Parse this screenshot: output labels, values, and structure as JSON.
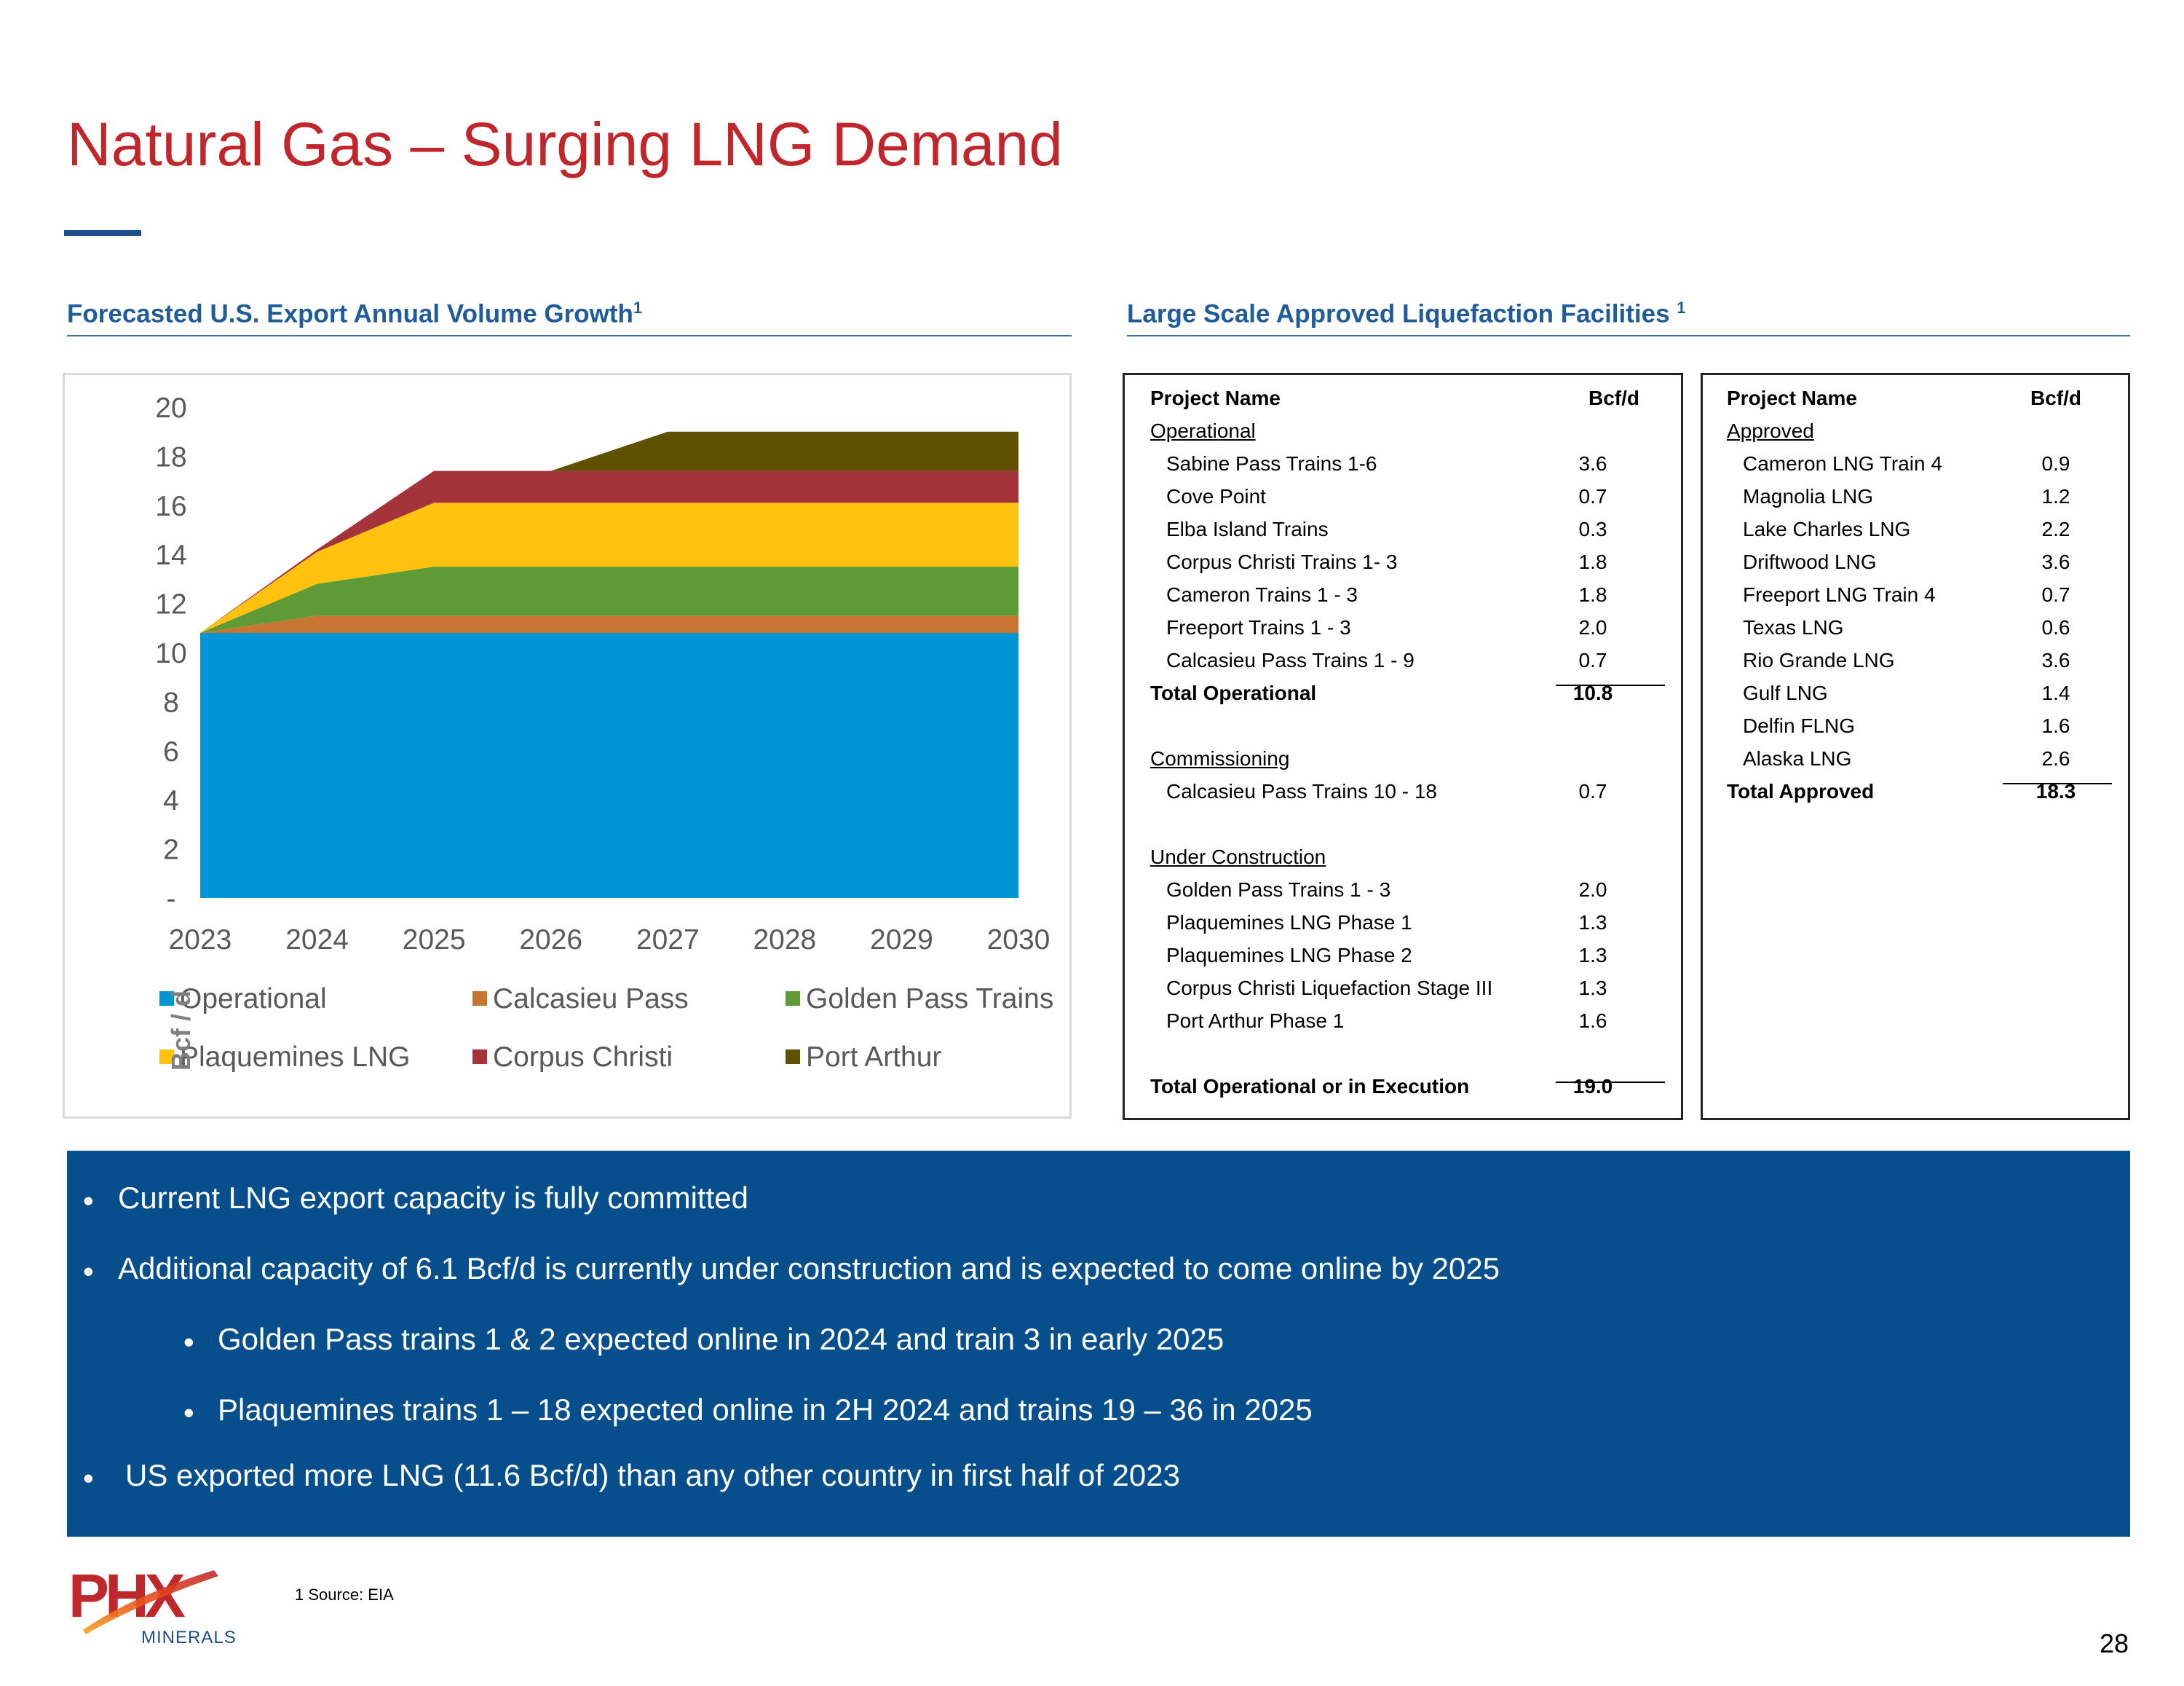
{
  "slide": {
    "title": "Natural Gas – Surging LNG Demand",
    "page_number": "28",
    "footnote": "1 Source: EIA"
  },
  "logo": {
    "mark": "PHX",
    "subtitle": "MINERALS"
  },
  "left_section": {
    "title": "Forecasted U.S. Export Annual Volume Growth",
    "superscript": "1"
  },
  "right_section": {
    "title": "Large Scale Approved Liquefaction Facilities",
    "superscript": "1"
  },
  "chart_data": {
    "type": "area",
    "stacked": true,
    "title": "Forecasted U.S. Export Annual Volume Growth",
    "x": [
      "2023",
      "2024",
      "2025",
      "2026",
      "2027",
      "2028",
      "2029",
      "2030"
    ],
    "ylabel": "Bcf / d",
    "ylim": [
      0,
      20
    ],
    "yticks": [
      "-",
      "2",
      "4",
      "6",
      "8",
      "10",
      "12",
      "14",
      "16",
      "18",
      "20"
    ],
    "grid": false,
    "legend_position": "bottom",
    "series": [
      {
        "name": "Operational",
        "color": "#0096d6",
        "values": [
          10.8,
          10.8,
          10.8,
          10.8,
          10.8,
          10.8,
          10.8,
          10.8
        ]
      },
      {
        "name": "Calcasieu Pass",
        "color": "#c87533",
        "values": [
          0,
          0.7,
          0.7,
          0.7,
          0.7,
          0.7,
          0.7,
          0.7
        ]
      },
      {
        "name": "Golden Pass Trains",
        "color": "#5e9a35",
        "values": [
          0,
          1.3,
          2.0,
          2.0,
          2.0,
          2.0,
          2.0,
          2.0
        ]
      },
      {
        "name": "Plaquemines LNG",
        "color": "#ffc20e",
        "values": [
          0,
          1.3,
          2.6,
          2.6,
          2.6,
          2.6,
          2.6,
          2.6
        ]
      },
      {
        "name": "Corpus Christi",
        "color": "#a4343a",
        "values": [
          0,
          0.1,
          1.3,
          1.3,
          1.3,
          1.3,
          1.3,
          1.3
        ]
      },
      {
        "name": "Port Arthur",
        "color": "#5f5000",
        "values": [
          0,
          0,
          0,
          0,
          1.6,
          1.6,
          1.6,
          1.6
        ]
      }
    ]
  },
  "table_left": {
    "col_project": "Project Name",
    "col_value": "Bcf/d",
    "operational": {
      "label": "Operational",
      "rows": [
        {
          "name": "Sabine Pass Trains 1-6",
          "value": "3.6"
        },
        {
          "name": "Cove Point",
          "value": "0.7"
        },
        {
          "name": "Elba Island Trains",
          "value": "0.3"
        },
        {
          "name": "Corpus Christi Trains 1- 3",
          "value": "1.8"
        },
        {
          "name": "Cameron Trains 1 - 3",
          "value": "1.8"
        },
        {
          "name": "Freeport Trains 1 - 3",
          "value": "2.0"
        },
        {
          "name": "Calcasieu Pass Trains 1 - 9",
          "value": "0.7"
        }
      ],
      "total_label": "Total Operational",
      "total_value": "10.8"
    },
    "commissioning": {
      "label": "Commissioning",
      "rows": [
        {
          "name": "Calcasieu Pass Trains 10 - 18",
          "value": "0.7"
        }
      ]
    },
    "under_construction": {
      "label": "Under Construction",
      "rows": [
        {
          "name": "Golden Pass Trains 1 - 3",
          "value": "2.0"
        },
        {
          "name": "Plaquemines LNG Phase 1",
          "value": "1.3"
        },
        {
          "name": "Plaquemines LNG Phase 2",
          "value": "1.3"
        },
        {
          "name": "Corpus Christi Liquefaction Stage III",
          "value": "1.3"
        },
        {
          "name": "Port Arthur Phase 1",
          "value": "1.6"
        }
      ]
    },
    "grand_total_label": "Total Operational or in Execution",
    "grand_total_value": "19.0"
  },
  "table_right": {
    "col_project": "Project Name",
    "col_value": "Bcf/d",
    "approved": {
      "label": "Approved",
      "rows": [
        {
          "name": "Cameron LNG Train 4",
          "value": "0.9"
        },
        {
          "name": "Magnolia LNG",
          "value": "1.2"
        },
        {
          "name": "Lake Charles LNG",
          "value": "2.2"
        },
        {
          "name": "Driftwood LNG",
          "value": "3.6"
        },
        {
          "name": "Freeport LNG Train 4",
          "value": "0.7"
        },
        {
          "name": "Texas LNG",
          "value": "0.6"
        },
        {
          "name": "Rio Grande LNG",
          "value": "3.6"
        },
        {
          "name": "Gulf LNG",
          "value": "1.4"
        },
        {
          "name": "Delfin FLNG",
          "value": "1.6"
        },
        {
          "name": "Alaska LNG",
          "value": "2.6"
        }
      ],
      "total_label": "Total Approved",
      "total_value": "18.3"
    }
  },
  "bullets": [
    {
      "text": "Current LNG export capacity is fully committed"
    },
    {
      "text": "Additional capacity of 6.1 Bcf/d is currently under construction and is expected to come online by 2025"
    },
    {
      "text": "Golden Pass trains 1 & 2 expected online in 2024 and train 3 in early 2025"
    },
    {
      "text": "Plaquemines trains 1 – 18 expected online in 2H 2024 and trains 19 – 36 in 2025"
    },
    {
      "text": "US exported more LNG (11.6 Bcf/d) than any other country in first half of 2023"
    }
  ]
}
